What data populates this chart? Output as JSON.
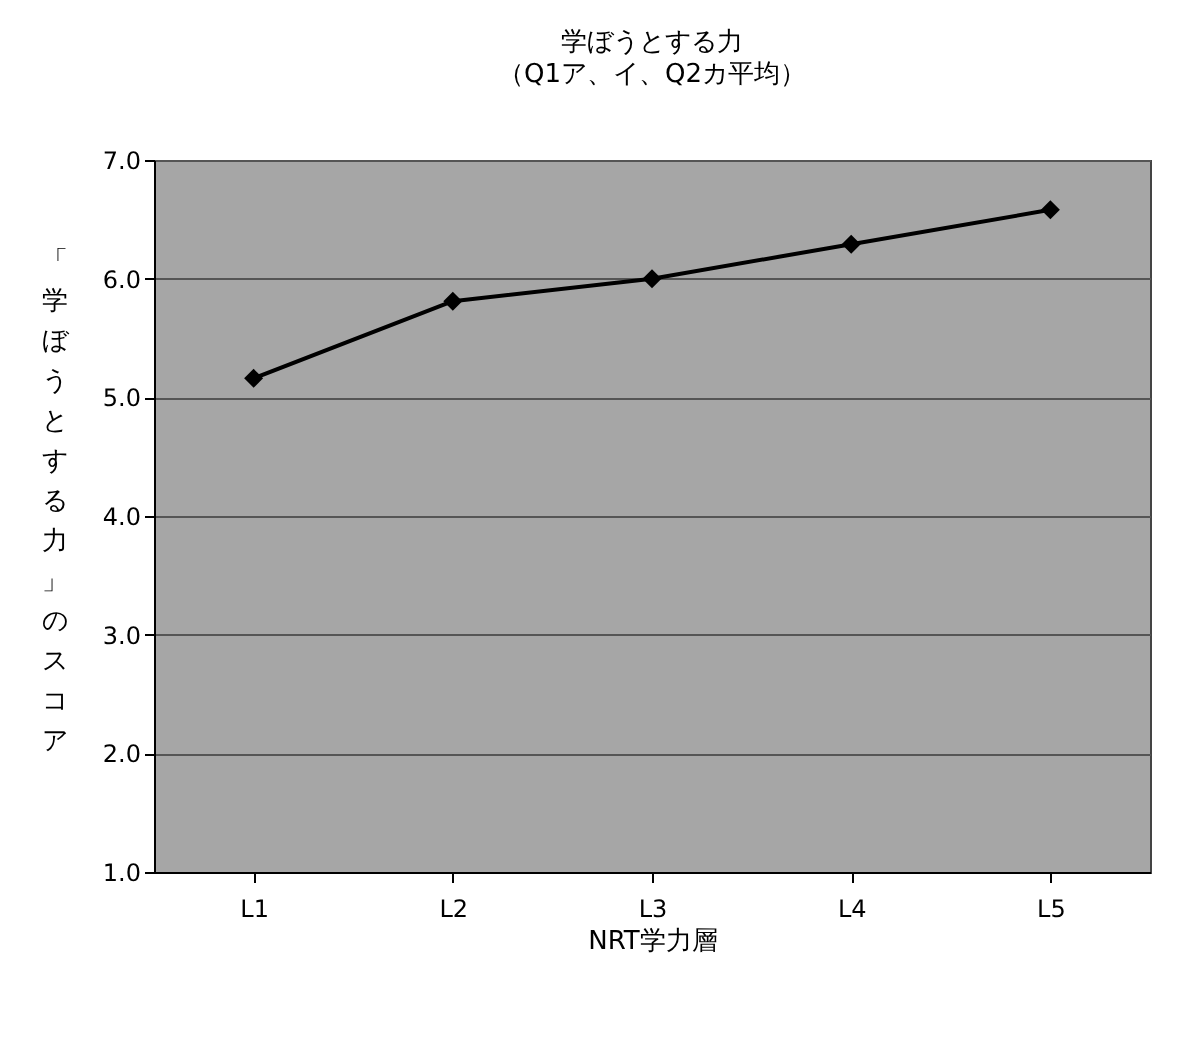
{
  "chart_data": {
    "type": "line",
    "title": "学ぼうとする力",
    "subtitle": "（Q1ア、イ、Q2カ平均）",
    "xlabel": "NRT学力層",
    "ylabel": "「学ぼうとする力」のスコア",
    "categories": [
      "L1",
      "L2",
      "L3",
      "L4",
      "L5"
    ],
    "series": [
      {
        "color": "#000000",
        "values": [
          5.16,
          5.81,
          6.0,
          6.29,
          6.58
        ]
      }
    ],
    "ylim": [
      1.0,
      7.0
    ],
    "yticks": [
      {
        "value": 1,
        "label": "1.0"
      },
      {
        "value": 2,
        "label": "2.0"
      },
      {
        "value": 3,
        "label": "3.0"
      },
      {
        "value": 4,
        "label": "4.0"
      },
      {
        "value": 5,
        "label": "5.0"
      },
      {
        "value": 6,
        "label": "6.0"
      },
      {
        "value": 7,
        "label": "7.0"
      }
    ],
    "grid": "y",
    "marker": "diamond",
    "line_style": "solid",
    "legend": false
  }
}
